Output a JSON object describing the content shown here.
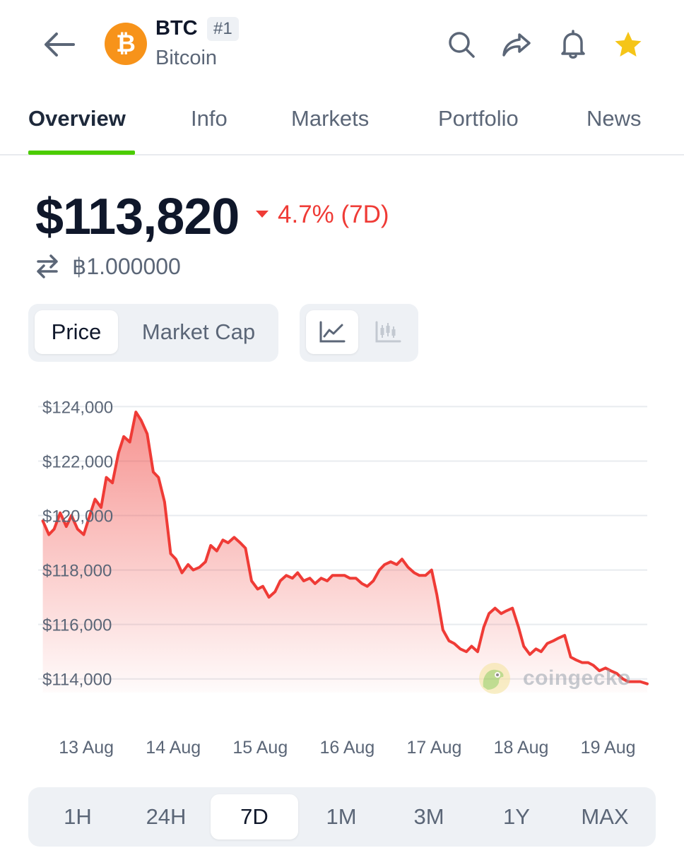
{
  "header": {
    "symbol": "BTC",
    "rank": "#1",
    "name": "Bitcoin",
    "logo_glyph": "₿",
    "icons": [
      "back-arrow-icon",
      "search-icon",
      "share-icon",
      "bell-icon",
      "star-icon"
    ],
    "star_color": "#f5c518"
  },
  "tabs": [
    {
      "label": "Overview",
      "active": true
    },
    {
      "label": "Info",
      "active": false
    },
    {
      "label": "Markets",
      "active": false
    },
    {
      "label": "Portfolio",
      "active": false
    },
    {
      "label": "News",
      "active": false
    }
  ],
  "price": {
    "value": "$113,820",
    "change": "4.7% (7D)",
    "change_direction": "down",
    "btc_value": "฿1.000000"
  },
  "toggles": {
    "metric": [
      "Price",
      "Market Cap"
    ],
    "metric_active": "Price",
    "chart_types": [
      "line-chart-icon",
      "candlestick-icon"
    ],
    "chart_type_active": "line-chart-icon"
  },
  "watermark": "coingecko",
  "colors": {
    "accent_green": "#4bcc00",
    "negative_red": "#ef3b36"
  },
  "timeframes": [
    "1H",
    "24H",
    "7D",
    "1M",
    "3M",
    "1Y",
    "MAX"
  ],
  "timeframe_active": "7D",
  "chart_data": {
    "type": "area",
    "ylim": [
      113500,
      124400
    ],
    "yticks": [
      124000,
      122000,
      120000,
      118000,
      116000,
      114000
    ],
    "ytick_labels": [
      "$124,000",
      "$122,000",
      "$120,000",
      "$118,000",
      "$116,000",
      "$114,000"
    ],
    "xtick_labels": [
      "13 Aug",
      "14 Aug",
      "15 Aug",
      "16 Aug",
      "17 Aug",
      "18 Aug",
      "19 Aug"
    ],
    "xlim": [
      12.93,
      19.95
    ],
    "grid": true,
    "x": [
      13.0,
      13.07,
      13.13,
      13.2,
      13.27,
      13.33,
      13.4,
      13.47,
      13.53,
      13.6,
      13.67,
      13.73,
      13.8,
      13.87,
      13.93,
      14.0,
      14.07,
      14.13,
      14.2,
      14.27,
      14.33,
      14.4,
      14.47,
      14.53,
      14.6,
      14.67,
      14.73,
      14.8,
      14.87,
      14.93,
      15.0,
      15.07,
      15.13,
      15.2,
      15.27,
      15.33,
      15.4,
      15.47,
      15.53,
      15.6,
      15.67,
      15.73,
      15.8,
      15.87,
      15.93,
      16.0,
      16.07,
      16.13,
      16.2,
      16.27,
      16.33,
      16.4,
      16.47,
      16.53,
      16.6,
      16.67,
      16.73,
      16.8,
      16.87,
      16.93,
      17.0,
      17.07,
      17.13,
      17.2,
      17.27,
      17.33,
      17.4,
      17.47,
      17.53,
      17.6,
      17.67,
      17.73,
      17.8,
      17.87,
      17.93,
      18.0,
      18.07,
      18.13,
      18.2,
      18.27,
      18.33,
      18.4,
      18.47,
      18.53,
      18.6,
      18.67,
      18.73,
      18.8,
      18.87,
      18.93,
      19.0,
      19.07,
      19.13,
      19.2,
      19.27,
      19.33,
      19.4,
      19.47,
      19.53,
      19.6,
      19.67,
      19.73,
      19.8,
      19.87,
      19.95
    ],
    "series": [
      {
        "color": "#ef3b36",
        "values": [
          119800,
          119300,
          119500,
          120100,
          119600,
          120000,
          119500,
          119300,
          119900,
          120600,
          120300,
          121400,
          121200,
          122300,
          122900,
          122700,
          123800,
          123500,
          123000,
          121600,
          121400,
          120500,
          118600,
          118400,
          117900,
          118200,
          118000,
          118100,
          118300,
          118900,
          118700,
          119100,
          119000,
          119200,
          119000,
          118800,
          117600,
          117300,
          117400,
          117000,
          117200,
          117600,
          117800,
          117700,
          117900,
          117600,
          117700,
          117500,
          117700,
          117600,
          117800,
          117800,
          117800,
          117700,
          117700,
          117500,
          117400,
          117600,
          118000,
          118200,
          118300,
          118200,
          118400,
          118100,
          117900,
          117800,
          117800,
          118000,
          117100,
          115800,
          115400,
          115300,
          115100,
          115000,
          115200,
          115000,
          115900,
          116400,
          116600,
          116400,
          116500,
          116600,
          115900,
          115200,
          114900,
          115100,
          115000,
          115300,
          115400,
          115500,
          115600,
          114800,
          114700,
          114600,
          114600,
          114500,
          114300,
          114400,
          114300,
          114200,
          114000,
          113900,
          113900,
          113900,
          113820
        ]
      }
    ]
  }
}
